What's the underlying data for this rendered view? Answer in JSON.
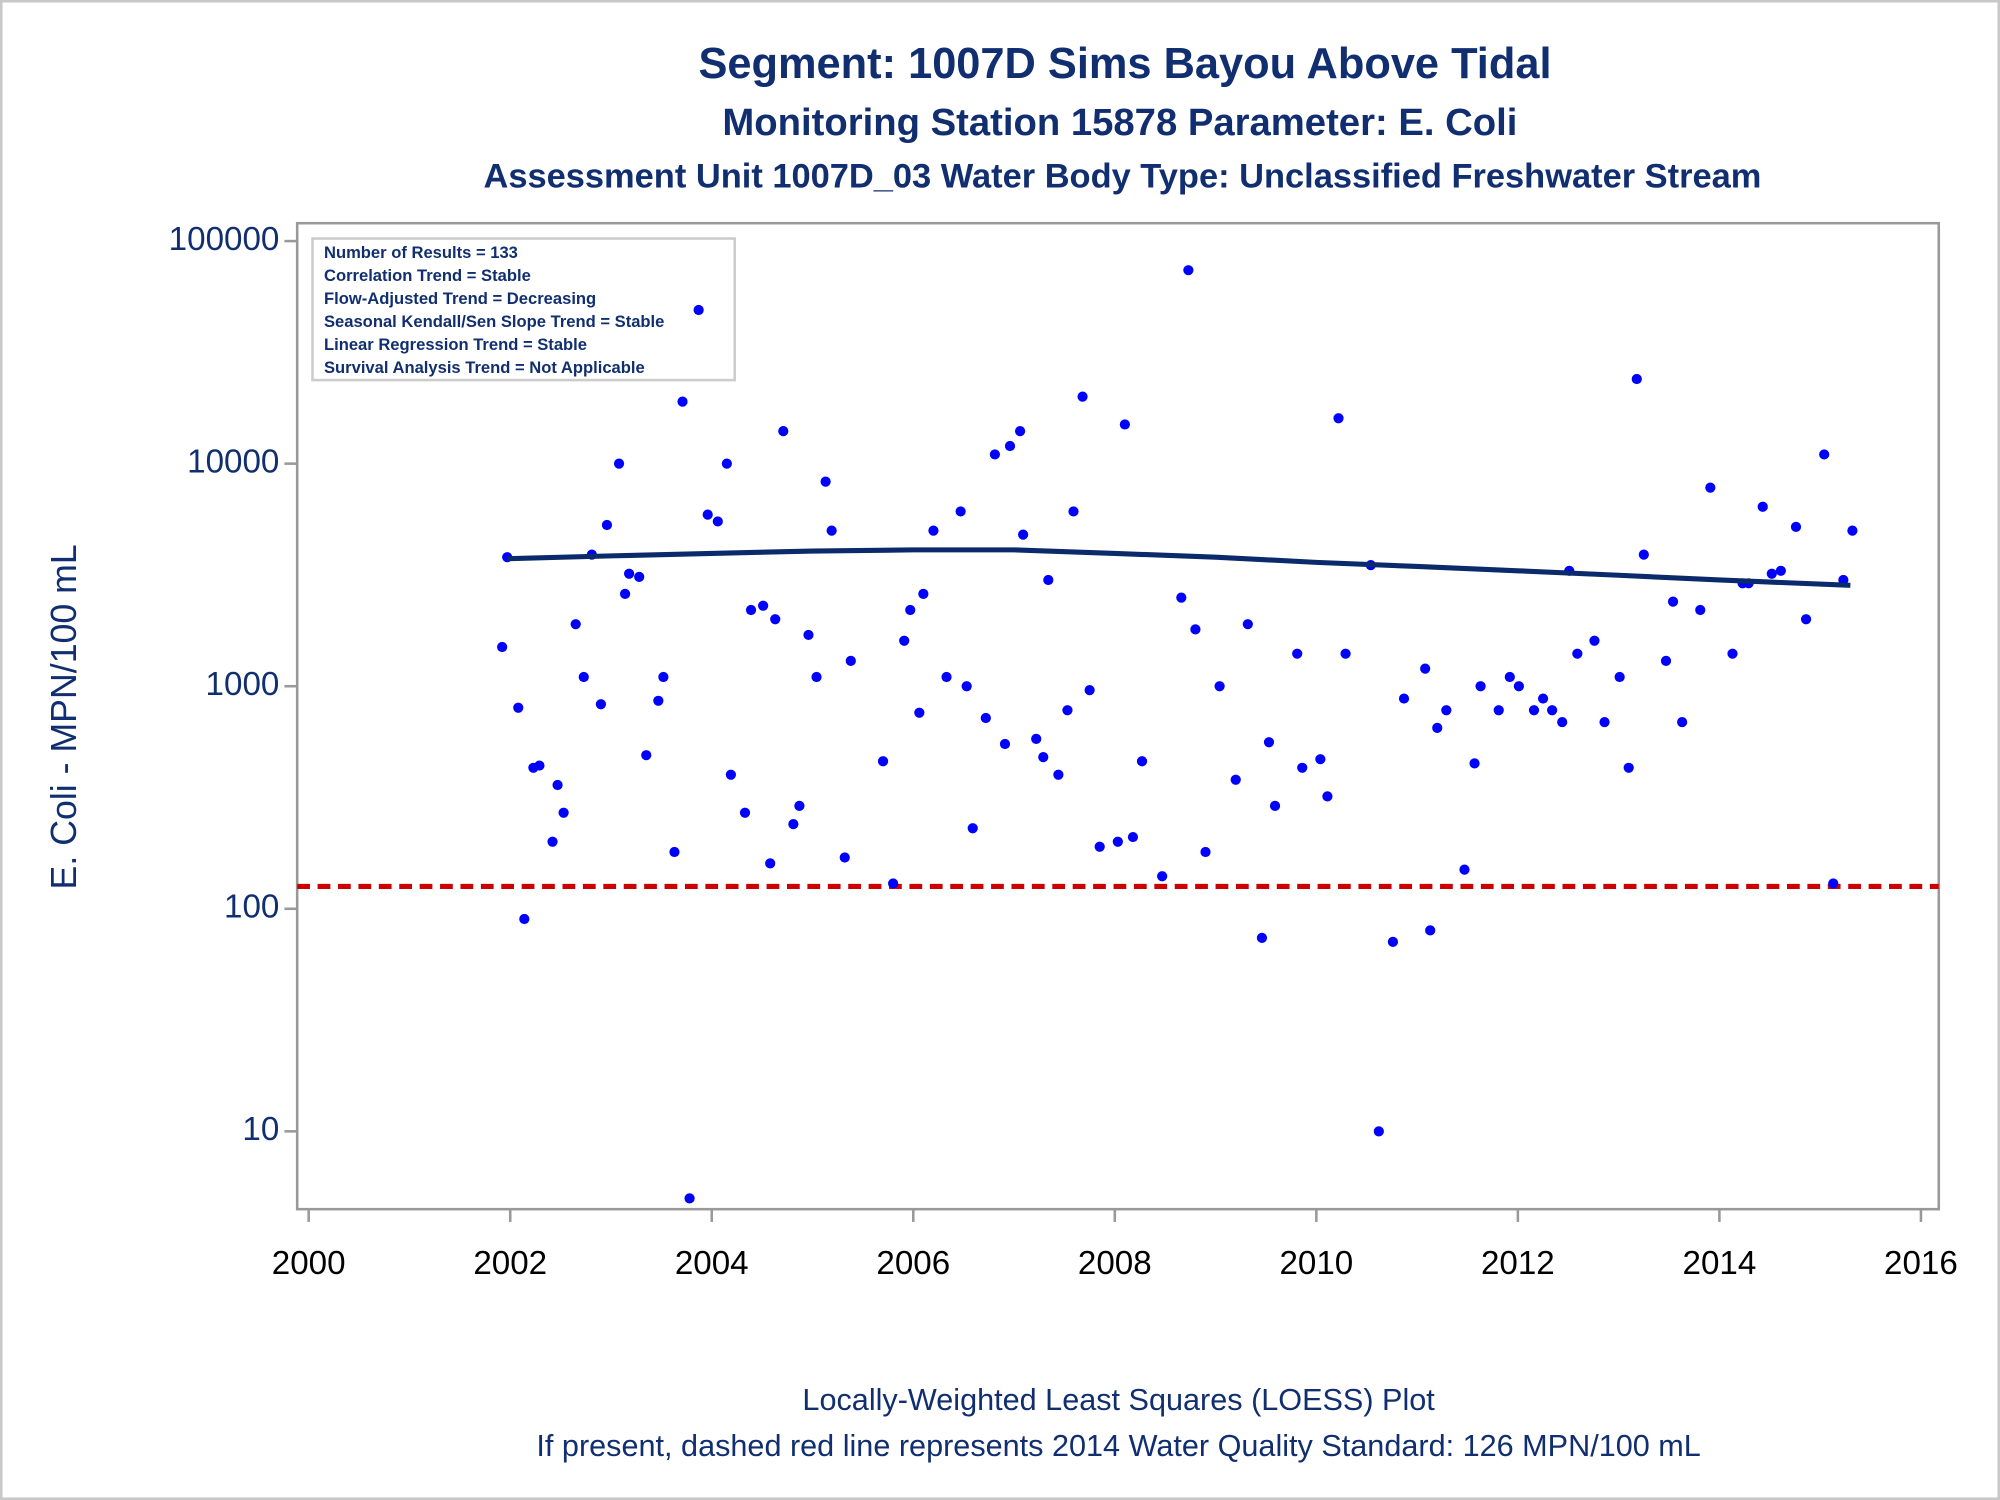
{
  "chart_data": {
    "type": "scatter",
    "title": "Segment: 1007D  Sims Bayou Above Tidal",
    "subtitle": "Monitoring Station 15878 Parameter: E. Coli",
    "subtitle2": "Assessment Unit 1007D_03   Water Body Type: Unclassified Freshwater Stream",
    "y_label": "E. Coli - MPN/100 mL",
    "footnotes": [
      "Locally-Weighted Least Squares (LOESS) Plot",
      "If present, dashed red line represents 2014 Water Quality Standard: 126 MPN/100 mL"
    ],
    "stats_box": [
      "Number of Results = 133",
      "Correlation Trend = Stable",
      "Flow-Adjusted Trend = Decreasing",
      "Seasonal Kendall/Sen Slope Trend = Stable",
      "Linear Regression Trend = Stable",
      "Survival Analysis Trend = Not Applicable"
    ],
    "y_scale": "log",
    "xlim": [
      1999.886,
      2016.177
    ],
    "ylim": [
      4.47,
      120300
    ],
    "xticks": [
      2000,
      2002,
      2004,
      2006,
      2008,
      2010,
      2012,
      2014,
      2016
    ],
    "yticks": [
      10,
      100,
      1000,
      10000,
      100000
    ],
    "reference_line": {
      "value": 126,
      "color": "#cc0000"
    },
    "points": {
      "color": "#0000ff",
      "x": [
        2001.92,
        2001.97,
        2002.08,
        2002.14,
        2002.23,
        2002.29,
        2002.42,
        2002.47,
        2002.53,
        2002.65,
        2002.73,
        2002.81,
        2002.9,
        2002.96,
        2003.08,
        2003.14,
        2003.18,
        2003.28,
        2003.35,
        2003.47,
        2003.52,
        2003.63,
        2003.71,
        2003.78,
        2003.87,
        2003.96,
        2004.06,
        2004.15,
        2004.19,
        2004.33,
        2004.39,
        2004.51,
        2004.58,
        2004.63,
        2004.71,
        2004.81,
        2004.87,
        2004.96,
        2005.04,
        2005.13,
        2005.19,
        2005.32,
        2005.38,
        2005.7,
        2005.8,
        2005.91,
        2005.97,
        2006.06,
        2006.1,
        2006.2,
        2006.33,
        2006.47,
        2006.53,
        2006.59,
        2006.72,
        2006.81,
        2006.91,
        2006.96,
        2007.06,
        2007.09,
        2007.22,
        2007.29,
        2007.34,
        2007.44,
        2007.53,
        2007.59,
        2007.68,
        2007.75,
        2007.85,
        2008.03,
        2008.1,
        2008.18,
        2008.27,
        2008.47,
        2008.66,
        2008.73,
        2008.8,
        2008.9,
        2009.04,
        2009.2,
        2009.32,
        2009.46,
        2009.53,
        2009.59,
        2009.81,
        2009.86,
        2010.04,
        2010.11,
        2010.22,
        2010.29,
        2010.54,
        2010.62,
        2010.76,
        2010.87,
        2011.08,
        2011.13,
        2011.2,
        2011.29,
        2011.47,
        2011.57,
        2011.63,
        2011.81,
        2011.92,
        2012.01,
        2012.16,
        2012.25,
        2012.34,
        2012.44,
        2012.51,
        2012.59,
        2012.76,
        2012.86,
        2013.01,
        2013.1,
        2013.18,
        2013.25,
        2013.47,
        2013.54,
        2013.63,
        2013.81,
        2013.91,
        2014.13,
        2014.23,
        2014.29,
        2014.43,
        2014.52,
        2014.61,
        2014.76,
        2014.86,
        2015.04,
        2015.13,
        2015.23,
        2015.32
      ],
      "values": [
        1500,
        3800,
        800,
        90,
        430,
        440,
        200,
        360,
        270,
        1900,
        1100,
        3900,
        830,
        5300,
        10000,
        2600,
        3200,
        3100,
        490,
        860,
        1100,
        180,
        19000,
        5,
        49000,
        5900,
        5500,
        10000,
        400,
        270,
        2200,
        2300,
        160,
        2000,
        14000,
        240,
        290,
        1700,
        1100,
        8300,
        5000,
        170,
        1300,
        460,
        130,
        1600,
        2200,
        760,
        2600,
        5000,
        1100,
        6100,
        1000,
        230,
        720,
        11000,
        550,
        12000,
        14000,
        4800,
        580,
        480,
        3000,
        400,
        780,
        6100,
        20000,
        960,
        190,
        200,
        15000,
        210,
        460,
        140,
        2500,
        74000,
        1800,
        180,
        1000,
        380,
        1900,
        74,
        560,
        290,
        1400,
        430,
        470,
        320,
        16000,
        1400,
        3500,
        10,
        71,
        880,
        1200,
        80,
        650,
        780,
        150,
        450,
        1000,
        780,
        1100,
        1000,
        780,
        880,
        780,
        690,
        3300,
        1400,
        1600,
        690,
        1100,
        430,
        24000,
        3900,
        1300,
        2400,
        690,
        2200,
        7800,
        1400,
        2900,
        2900,
        6400,
        3200,
        3300,
        5200,
        2000,
        11000,
        130,
        3000,
        5000
      ]
    },
    "loess": {
      "color": "#0b2a6b",
      "x": [
        2001.97,
        2003.0,
        2004.0,
        2005.0,
        2006.0,
        2007.0,
        2008.0,
        2009.0,
        2010.0,
        2011.0,
        2012.0,
        2013.0,
        2014.0,
        2015.3
      ],
      "values": [
        3740,
        3850,
        3950,
        4050,
        4100,
        4100,
        3950,
        3800,
        3600,
        3450,
        3300,
        3150,
        3000,
        2840
      ]
    }
  }
}
